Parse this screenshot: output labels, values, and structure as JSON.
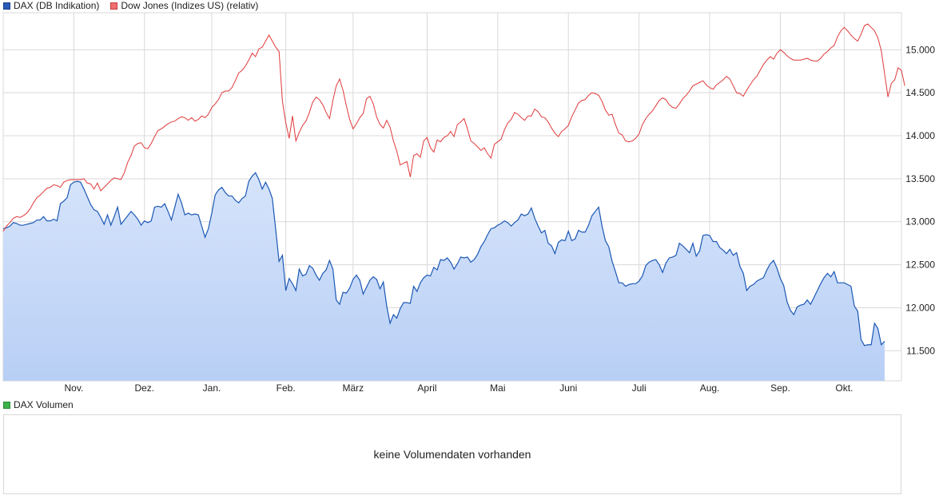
{
  "colors": {
    "dax_line": "#1c58b4",
    "dax_fill_top": "#d6e4fb",
    "dax_fill_bottom": "#b8cff5",
    "dow_line": "#e0393b",
    "grid": "#d9d9d9",
    "vol_swatch": "#3cb24a"
  },
  "legend": [
    {
      "label": "DAX (DB Indikation)",
      "swatch_fill": "#2a5ab8",
      "swatch_border": "#1a3f8a"
    },
    {
      "label": "Dow Jones (Indizes US) (relativ)",
      "swatch_fill": "#f07070",
      "swatch_border": "#c43c3c"
    }
  ],
  "volume": {
    "legend_label": "DAX Volumen",
    "message": "keine Volumendaten vorhanden"
  },
  "chart_data": {
    "type": "line",
    "x_labels": [
      "Nov.",
      "Dez.",
      "Jan.",
      "Feb.",
      "März",
      "April",
      "Mai",
      "Juni",
      "Juli",
      "Aug.",
      "Sep.",
      "Okt."
    ],
    "x_label_positions": [
      21.0,
      42.0,
      62.0,
      84.0,
      104.0,
      126.0,
      147.0,
      168.0,
      189.0,
      210.0,
      231.0,
      250.0
    ],
    "x_range": [
      0,
      267
    ],
    "y_ticks": [
      "11.500",
      "12.000",
      "12.500",
      "13.000",
      "13.500",
      "14.000",
      "14.500",
      "15.000"
    ],
    "y_tick_values": [
      11500,
      12000,
      12500,
      13000,
      13500,
      14000,
      14500,
      15000
    ],
    "ylim": [
      11150,
      15430
    ],
    "grid": true,
    "legend_position": "top-left",
    "series": [
      {
        "name": "DAX (DB Indikation)",
        "style": "area",
        "values": [
          12920,
          12930,
          12950,
          12990,
          12980,
          12960,
          12960,
          12970,
          12980,
          12990,
          13020,
          13020,
          13060,
          13010,
          13010,
          13030,
          13010,
          13210,
          13240,
          13280,
          13430,
          13460,
          13470,
          13460,
          13380,
          13290,
          13200,
          13140,
          13120,
          13050,
          12970,
          13080,
          12960,
          13060,
          13170,
          12970,
          13020,
          13070,
          13120,
          13080,
          13030,
          12960,
          13010,
          12990,
          13010,
          13170,
          13180,
          13170,
          13210,
          13120,
          13020,
          13170,
          13320,
          13220,
          13080,
          13100,
          13080,
          13090,
          13080,
          12950,
          12820,
          12920,
          13100,
          13310,
          13370,
          13400,
          13340,
          13300,
          13300,
          13250,
          13220,
          13270,
          13300,
          13470,
          13530,
          13570,
          13490,
          13380,
          13460,
          13380,
          13270,
          12910,
          12540,
          12610,
          12200,
          12340,
          12280,
          12200,
          12450,
          12370,
          12390,
          12490,
          12460,
          12380,
          12320,
          12400,
          12440,
          12550,
          12450,
          12090,
          12040,
          12180,
          12170,
          12230,
          12330,
          12380,
          12320,
          12160,
          12240,
          12320,
          12360,
          12330,
          12220,
          12300,
          12020,
          11820,
          11920,
          11880,
          11990,
          12060,
          12060,
          12050,
          12250,
          12190,
          12290,
          12350,
          12380,
          12370,
          12470,
          12440,
          12560,
          12550,
          12580,
          12530,
          12450,
          12510,
          12590,
          12580,
          12590,
          12530,
          12560,
          12620,
          12710,
          12770,
          12850,
          12920,
          12930,
          12960,
          12980,
          13010,
          12990,
          12950,
          12990,
          13020,
          13090,
          13070,
          13090,
          13160,
          13040,
          12950,
          12870,
          12900,
          12750,
          12720,
          12630,
          12760,
          12790,
          12780,
          12890,
          12780,
          12800,
          12900,
          12880,
          12880,
          12960,
          13070,
          13120,
          13170,
          12950,
          12780,
          12710,
          12540,
          12420,
          12290,
          12290,
          12250,
          12270,
          12280,
          12280,
          12310,
          12370,
          12490,
          12530,
          12550,
          12560,
          12500,
          12410,
          12520,
          12580,
          12590,
          12610,
          12750,
          12720,
          12680,
          12640,
          12750,
          12600,
          12660,
          12840,
          12850,
          12840,
          12770,
          12770,
          12700,
          12670,
          12630,
          12680,
          12610,
          12640,
          12480,
          12400,
          12200,
          12250,
          12270,
          12310,
          12330,
          12350,
          12440,
          12510,
          12550,
          12460,
          12340,
          12260,
          12070,
          11970,
          11920,
          12010,
          12030,
          12040,
          12090,
          12040,
          12120,
          12200,
          12280,
          12350,
          12400,
          12360,
          12420,
          12290,
          12290,
          12290,
          12270,
          12250,
          12020,
          11960,
          11630,
          11560,
          11570,
          11570,
          11820,
          11760,
          11570,
          11610
        ]
      },
      {
        "name": "Dow Jones (Indizes US) (relativ)",
        "style": "line",
        "values": [
          12890,
          12950,
          12990,
          13040,
          13060,
          13050,
          13070,
          13100,
          13150,
          13220,
          13280,
          13310,
          13350,
          13390,
          13400,
          13430,
          13420,
          13400,
          13460,
          13480,
          13490,
          13490,
          13490,
          13490,
          13500,
          13450,
          13440,
          13380,
          13450,
          13360,
          13400,
          13440,
          13480,
          13510,
          13500,
          13490,
          13570,
          13690,
          13770,
          13880,
          13910,
          13920,
          13860,
          13850,
          13910,
          13990,
          14060,
          14080,
          14110,
          14140,
          14160,
          14170,
          14200,
          14220,
          14210,
          14180,
          14210,
          14170,
          14190,
          14230,
          14210,
          14250,
          14330,
          14370,
          14420,
          14500,
          14520,
          14520,
          14560,
          14640,
          14730,
          14760,
          14810,
          14880,
          14960,
          14920,
          15010,
          15030,
          15100,
          15170,
          15100,
          15030,
          14980,
          14400,
          14150,
          13970,
          14230,
          13940,
          14040,
          14120,
          14170,
          14270,
          14390,
          14450,
          14420,
          14360,
          14270,
          14200,
          14410,
          14580,
          14660,
          14530,
          14350,
          14190,
          14080,
          14140,
          14210,
          14260,
          14430,
          14460,
          14370,
          14220,
          14130,
          14090,
          14180,
          14100,
          13940,
          13820,
          13660,
          13680,
          13700,
          13520,
          13770,
          13790,
          13750,
          13940,
          13980,
          13860,
          13810,
          13950,
          13930,
          13980,
          14000,
          14050,
          13990,
          14130,
          14160,
          14200,
          14080,
          13940,
          13910,
          13870,
          13830,
          13860,
          13790,
          13740,
          13900,
          13930,
          13960,
          14070,
          14150,
          14190,
          14270,
          14250,
          14210,
          14180,
          14230,
          14230,
          14310,
          14280,
          14220,
          14210,
          14160,
          14090,
          14030,
          13990,
          14050,
          14080,
          14120,
          14220,
          14300,
          14380,
          14410,
          14420,
          14470,
          14500,
          14490,
          14470,
          14400,
          14300,
          14240,
          14250,
          14130,
          14030,
          14010,
          13940,
          13930,
          13940,
          13970,
          14020,
          14130,
          14200,
          14250,
          14290,
          14350,
          14410,
          14440,
          14420,
          14360,
          14330,
          14320,
          14370,
          14430,
          14470,
          14520,
          14580,
          14600,
          14620,
          14640,
          14590,
          14560,
          14540,
          14590,
          14620,
          14650,
          14690,
          14660,
          14580,
          14500,
          14490,
          14460,
          14530,
          14590,
          14650,
          14690,
          14760,
          14830,
          14880,
          14920,
          14890,
          14960,
          15000,
          14970,
          14930,
          14900,
          14880,
          14880,
          14880,
          14890,
          14900,
          14880,
          14870,
          14870,
          14900,
          14950,
          14980,
          15020,
          15050,
          15150,
          15220,
          15260,
          15220,
          15170,
          15130,
          15100,
          15180,
          15280,
          15300,
          15260,
          15220,
          15140,
          14990,
          14720,
          14450,
          14610,
          14650,
          14790,
          14760,
          14580
        ]
      }
    ]
  }
}
